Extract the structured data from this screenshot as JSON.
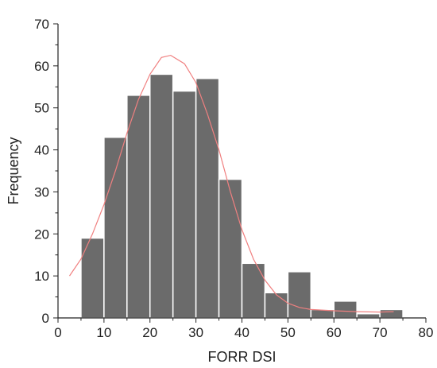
{
  "chart_data": {
    "type": "bar",
    "subtype": "histogram",
    "title": "",
    "xlabel": "FORR DSI",
    "ylabel": "Frequency",
    "xlim": [
      0,
      80
    ],
    "ylim": [
      0,
      70
    ],
    "xticks": [
      0,
      10,
      20,
      30,
      40,
      50,
      60,
      70,
      80
    ],
    "yticks": [
      0,
      10,
      20,
      30,
      40,
      50,
      60,
      70
    ],
    "bin_width": 5,
    "bins": [
      {
        "x0": 5,
        "x1": 10,
        "value": 19
      },
      {
        "x0": 10,
        "x1": 15,
        "value": 43
      },
      {
        "x0": 15,
        "x1": 20,
        "value": 53
      },
      {
        "x0": 20,
        "x1": 25,
        "value": 58
      },
      {
        "x0": 25,
        "x1": 30,
        "value": 54
      },
      {
        "x0": 30,
        "x1": 35,
        "value": 57
      },
      {
        "x0": 35,
        "x1": 40,
        "value": 33
      },
      {
        "x0": 40,
        "x1": 45,
        "value": 13
      },
      {
        "x0": 45,
        "x1": 50,
        "value": 6
      },
      {
        "x0": 50,
        "x1": 55,
        "value": 11
      },
      {
        "x0": 55,
        "x1": 60,
        "value": 2
      },
      {
        "x0": 60,
        "x1": 65,
        "value": 4
      },
      {
        "x0": 65,
        "x1": 70,
        "value": 1
      },
      {
        "x0": 70,
        "x1": 75,
        "value": 2
      }
    ],
    "fit_curve": {
      "type": "line",
      "color": "#f08080",
      "points": [
        [
          2.5,
          10
        ],
        [
          5,
          14
        ],
        [
          7.5,
          20
        ],
        [
          10,
          27
        ],
        [
          12.5,
          35
        ],
        [
          15,
          44
        ],
        [
          17.5,
          52
        ],
        [
          20,
          58
        ],
        [
          22.5,
          62
        ],
        [
          24.5,
          62.5
        ],
        [
          27.5,
          60.5
        ],
        [
          30,
          56
        ],
        [
          32.5,
          48.5
        ],
        [
          35,
          40
        ],
        [
          37.5,
          30
        ],
        [
          40,
          21
        ],
        [
          42.5,
          14
        ],
        [
          45,
          9
        ],
        [
          47.5,
          5.5
        ],
        [
          50,
          3.5
        ],
        [
          52.5,
          2.5
        ],
        [
          55,
          2
        ],
        [
          60,
          1.7
        ],
        [
          65,
          1.5
        ],
        [
          70,
          1.4
        ],
        [
          73,
          1.5
        ]
      ]
    },
    "bar_color": "#6b6b6b",
    "bar_edge_color": "#ffffff",
    "grid": false
  }
}
